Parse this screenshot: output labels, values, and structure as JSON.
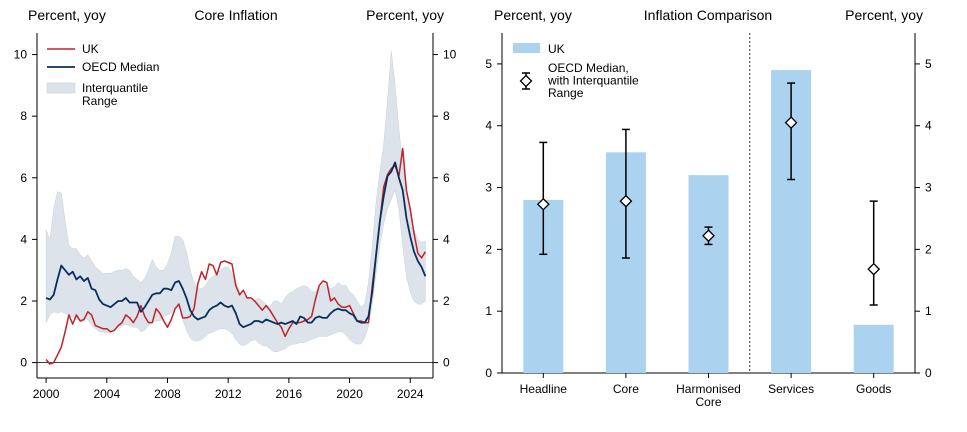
{
  "colors": {
    "uk_line": "#c0232a",
    "oecd_line": "#0b2f5b",
    "band": "#dde3ea",
    "bar": "#abd2ef",
    "axis": "#000000"
  },
  "chart_data": [
    {
      "type": "line",
      "title": "Core Inflation",
      "ylabel_left": "Percent, yoy",
      "ylabel_right": "Percent, yoy",
      "xlim": [
        1999.4,
        2025.5
      ],
      "ylim": [
        -0.5,
        10.7
      ],
      "x_ticks": [
        2000,
        2004,
        2008,
        2012,
        2016,
        2020,
        2024
      ],
      "x_tick_labels": [
        "2000",
        "2004",
        "2008",
        "2012",
        "2016",
        "2020",
        "2024"
      ],
      "y_ticks": [
        0,
        2,
        4,
        6,
        8,
        10
      ],
      "y_tick_labels": [
        "0",
        "2",
        "4",
        "6",
        "8",
        "10"
      ],
      "legend": [
        "UK",
        "OECD Median",
        "Interquantile Range"
      ],
      "legend_position": "top-left",
      "series": [
        {
          "name": "UK",
          "x": [
            2000.0,
            2000.25,
            2000.5,
            2000.75,
            2001.0,
            2001.25,
            2001.5,
            2001.75,
            2002.0,
            2002.25,
            2002.5,
            2002.75,
            2003.0,
            2003.25,
            2003.5,
            2003.75,
            2004.0,
            2004.25,
            2004.5,
            2004.75,
            2005.0,
            2005.25,
            2005.5,
            2005.75,
            2006.0,
            2006.25,
            2006.5,
            2006.75,
            2007.0,
            2007.25,
            2007.5,
            2007.75,
            2008.0,
            2008.25,
            2008.5,
            2008.75,
            2009.0,
            2009.25,
            2009.5,
            2009.75,
            2010.0,
            2010.25,
            2010.5,
            2010.75,
            2011.0,
            2011.25,
            2011.5,
            2011.75,
            2012.0,
            2012.25,
            2012.5,
            2012.75,
            2013.0,
            2013.25,
            2013.5,
            2013.75,
            2014.0,
            2014.25,
            2014.5,
            2014.75,
            2015.0,
            2015.25,
            2015.5,
            2015.75,
            2016.0,
            2016.25,
            2016.5,
            2016.75,
            2017.0,
            2017.25,
            2017.5,
            2017.75,
            2018.0,
            2018.25,
            2018.5,
            2018.75,
            2019.0,
            2019.25,
            2019.5,
            2019.75,
            2020.0,
            2020.25,
            2020.5,
            2020.75,
            2021.0,
            2021.25,
            2021.5,
            2021.75,
            2022.0,
            2022.25,
            2022.5,
            2022.75,
            2023.0,
            2023.25,
            2023.5,
            2023.75,
            2024.0,
            2024.25,
            2024.5,
            2024.75,
            2025.0
          ],
          "values": [
            0.1,
            -0.05,
            0.0,
            0.25,
            0.5,
            1.0,
            1.55,
            1.25,
            1.55,
            1.35,
            1.4,
            1.65,
            1.55,
            1.2,
            1.15,
            1.1,
            1.1,
            1.0,
            1.05,
            1.2,
            1.3,
            1.55,
            1.45,
            1.3,
            1.5,
            1.85,
            1.5,
            1.3,
            1.3,
            1.75,
            1.6,
            1.35,
            1.15,
            1.4,
            1.75,
            1.9,
            1.45,
            1.45,
            1.5,
            1.75,
            2.55,
            2.95,
            2.7,
            3.2,
            3.15,
            2.85,
            3.25,
            3.3,
            3.25,
            3.2,
            2.5,
            2.2,
            2.35,
            2.1,
            2.1,
            2.0,
            1.85,
            1.7,
            1.85,
            1.7,
            1.5,
            1.3,
            1.15,
            0.85,
            1.1,
            1.3,
            1.3,
            1.3,
            1.35,
            1.4,
            1.5,
            2.05,
            2.5,
            2.65,
            2.6,
            2.0,
            2.1,
            1.9,
            1.8,
            1.8,
            1.85,
            1.6,
            1.35,
            1.35,
            1.3,
            1.3,
            2.5,
            3.5,
            4.6,
            5.7,
            6.1,
            6.3,
            6.4,
            6.05,
            6.95,
            5.6,
            5.0,
            4.2,
            3.55,
            3.4,
            3.6
          ]
        },
        {
          "name": "OECD Median",
          "x": [
            2000.0,
            2000.25,
            2000.5,
            2000.75,
            2001.0,
            2001.25,
            2001.5,
            2001.75,
            2002.0,
            2002.25,
            2002.5,
            2002.75,
            2003.0,
            2003.25,
            2003.5,
            2003.75,
            2004.0,
            2004.25,
            2004.5,
            2004.75,
            2005.0,
            2005.25,
            2005.5,
            2005.75,
            2006.0,
            2006.25,
            2006.5,
            2006.75,
            2007.0,
            2007.25,
            2007.5,
            2007.75,
            2008.0,
            2008.25,
            2008.5,
            2008.75,
            2009.0,
            2009.25,
            2009.5,
            2009.75,
            2010.0,
            2010.25,
            2010.5,
            2010.75,
            2011.0,
            2011.25,
            2011.5,
            2011.75,
            2012.0,
            2012.25,
            2012.5,
            2012.75,
            2013.0,
            2013.25,
            2013.5,
            2013.75,
            2014.0,
            2014.25,
            2014.5,
            2014.75,
            2015.0,
            2015.25,
            2015.5,
            2015.75,
            2016.0,
            2016.25,
            2016.5,
            2016.75,
            2017.0,
            2017.25,
            2017.5,
            2017.75,
            2018.0,
            2018.25,
            2018.5,
            2018.75,
            2019.0,
            2019.25,
            2019.5,
            2019.75,
            2020.0,
            2020.25,
            2020.5,
            2020.75,
            2021.0,
            2021.25,
            2021.5,
            2021.75,
            2022.0,
            2022.25,
            2022.5,
            2022.75,
            2023.0,
            2023.25,
            2023.5,
            2023.75,
            2024.0,
            2024.25,
            2024.5,
            2024.75,
            2025.0
          ],
          "values": [
            2.1,
            2.05,
            2.2,
            2.7,
            3.15,
            3.0,
            2.85,
            2.95,
            2.7,
            2.8,
            2.65,
            2.75,
            2.4,
            2.35,
            2.05,
            1.9,
            1.85,
            1.8,
            1.9,
            2.0,
            2.0,
            2.1,
            1.95,
            1.95,
            1.95,
            1.65,
            1.8,
            2.0,
            2.2,
            2.25,
            2.25,
            2.4,
            2.4,
            2.35,
            2.6,
            2.65,
            2.4,
            2.1,
            1.7,
            1.5,
            1.4,
            1.45,
            1.5,
            1.7,
            1.8,
            1.85,
            1.95,
            1.85,
            1.8,
            1.85,
            1.6,
            1.25,
            1.15,
            1.2,
            1.25,
            1.35,
            1.35,
            1.3,
            1.4,
            1.35,
            1.3,
            1.25,
            1.3,
            1.25,
            1.3,
            1.35,
            1.25,
            1.5,
            1.45,
            1.3,
            1.3,
            1.45,
            1.5,
            1.45,
            1.45,
            1.6,
            1.7,
            1.75,
            1.7,
            1.7,
            1.6,
            1.55,
            1.35,
            1.3,
            1.3,
            1.5,
            2.3,
            3.5,
            4.6,
            5.4,
            6.05,
            6.2,
            6.5,
            6.0,
            5.6,
            4.7,
            4.1,
            3.6,
            3.3,
            3.1,
            2.8
          ]
        }
      ],
      "band": {
        "name": "Interquantile Range",
        "x": [
          2000.0,
          2000.25,
          2000.5,
          2000.75,
          2001.0,
          2001.25,
          2001.5,
          2001.75,
          2002.0,
          2002.25,
          2002.5,
          2002.75,
          2003.0,
          2003.25,
          2003.5,
          2003.75,
          2004.0,
          2004.25,
          2004.5,
          2004.75,
          2005.0,
          2005.25,
          2005.5,
          2005.75,
          2006.0,
          2006.25,
          2006.5,
          2006.75,
          2007.0,
          2007.25,
          2007.5,
          2007.75,
          2008.0,
          2008.25,
          2008.5,
          2008.75,
          2009.0,
          2009.25,
          2009.5,
          2009.75,
          2010.0,
          2010.25,
          2010.5,
          2010.75,
          2011.0,
          2011.25,
          2011.5,
          2011.75,
          2012.0,
          2012.25,
          2012.5,
          2012.75,
          2013.0,
          2013.25,
          2013.5,
          2013.75,
          2014.0,
          2014.25,
          2014.5,
          2014.75,
          2015.0,
          2015.25,
          2015.5,
          2015.75,
          2016.0,
          2016.25,
          2016.5,
          2016.75,
          2017.0,
          2017.25,
          2017.5,
          2017.75,
          2018.0,
          2018.25,
          2018.5,
          2018.75,
          2019.0,
          2019.25,
          2019.5,
          2019.75,
          2020.0,
          2020.25,
          2020.5,
          2020.75,
          2021.0,
          2021.25,
          2021.5,
          2021.75,
          2022.0,
          2022.25,
          2022.5,
          2022.75,
          2023.0,
          2023.25,
          2023.5,
          2023.75,
          2024.0,
          2024.25,
          2024.5,
          2024.75,
          2025.0
        ],
        "upper": [
          4.3,
          4.0,
          5.0,
          5.55,
          5.5,
          4.6,
          3.8,
          3.7,
          3.7,
          3.5,
          3.4,
          3.5,
          3.3,
          3.1,
          3.0,
          2.9,
          2.9,
          2.9,
          2.95,
          3.0,
          3.0,
          3.05,
          3.0,
          2.8,
          2.7,
          2.6,
          2.75,
          3.0,
          3.35,
          3.1,
          3.0,
          3.0,
          3.2,
          3.55,
          4.1,
          4.1,
          4.0,
          3.6,
          3.0,
          2.6,
          2.4,
          2.4,
          2.5,
          2.7,
          2.8,
          2.9,
          3.0,
          3.1,
          3.1,
          2.9,
          2.6,
          2.3,
          2.2,
          2.1,
          2.0,
          2.0,
          2.1,
          2.0,
          1.9,
          1.8,
          2.0,
          2.0,
          1.9,
          2.1,
          2.25,
          2.3,
          2.4,
          2.45,
          2.5,
          2.45,
          2.3,
          2.3,
          2.4,
          2.55,
          2.5,
          2.4,
          2.45,
          2.6,
          2.5,
          2.5,
          2.3,
          2.2,
          2.0,
          1.8,
          1.9,
          2.6,
          3.8,
          5.2,
          6.2,
          7.1,
          8.5,
          10.1,
          9.0,
          7.6,
          6.4,
          5.6,
          4.8,
          4.3,
          4.0,
          3.9,
          3.95
        ],
        "lower": [
          1.3,
          1.55,
          1.65,
          1.6,
          1.65,
          1.6,
          1.55,
          1.45,
          1.4,
          1.4,
          1.45,
          1.4,
          1.2,
          1.1,
          1.0,
          1.0,
          0.95,
          1.0,
          1.1,
          1.2,
          1.2,
          1.25,
          1.2,
          1.15,
          1.15,
          1.0,
          1.05,
          1.2,
          1.3,
          1.35,
          1.35,
          1.5,
          1.55,
          1.6,
          1.8,
          1.85,
          1.4,
          1.05,
          0.8,
          0.7,
          0.7,
          0.75,
          0.85,
          0.95,
          1.0,
          1.05,
          1.1,
          1.1,
          1.05,
          0.95,
          0.75,
          0.6,
          0.55,
          0.6,
          0.7,
          0.75,
          0.65,
          0.55,
          0.55,
          0.45,
          0.35,
          0.35,
          0.4,
          0.45,
          0.55,
          0.6,
          0.6,
          0.65,
          0.65,
          0.7,
          0.75,
          0.8,
          0.85,
          0.85,
          0.85,
          0.9,
          0.95,
          1.0,
          1.0,
          0.9,
          0.75,
          0.65,
          0.6,
          0.6,
          0.8,
          1.2,
          1.9,
          2.9,
          3.8,
          4.5,
          5.0,
          5.3,
          5.6,
          5.0,
          3.8,
          2.8,
          2.3,
          2.0,
          1.9,
          1.9,
          2.0
        ]
      }
    },
    {
      "type": "bar",
      "title": "Inflation Comparison",
      "ylabel_left": "Percent, yoy",
      "ylabel_right": "Percent, yoy",
      "ylim": [
        0,
        5.5
      ],
      "y_ticks": [
        0,
        1,
        2,
        3,
        4,
        5
      ],
      "y_tick_labels": [
        "0",
        "1",
        "2",
        "3",
        "4",
        "5"
      ],
      "categories": [
        "Headline",
        "Core",
        "Harmonised Core",
        "Services",
        "Goods"
      ],
      "category_labels": [
        [
          "Headline"
        ],
        [
          "Core"
        ],
        [
          "Harmonised",
          "Core"
        ],
        [
          "Services"
        ],
        [
          "Goods"
        ]
      ],
      "divider_after_index": 2,
      "legend": [
        "UK",
        "OECD Median, with Interquantile Range"
      ],
      "legend_lines": [
        [
          "UK"
        ],
        [
          "OECD Median,",
          "with Interquantile",
          "Range"
        ]
      ],
      "legend_position": "top-left",
      "series": [
        {
          "name": "UK",
          "kind": "bar",
          "values": [
            2.8,
            3.57,
            3.2,
            4.9,
            0.78
          ]
        },
        {
          "name": "OECD Median",
          "kind": "point",
          "values": [
            2.73,
            2.78,
            2.22,
            4.05,
            1.68
          ],
          "lower": [
            1.92,
            1.86,
            2.08,
            3.13,
            1.1
          ],
          "upper": [
            3.73,
            3.94,
            2.36,
            4.69,
            2.78
          ]
        }
      ]
    }
  ]
}
